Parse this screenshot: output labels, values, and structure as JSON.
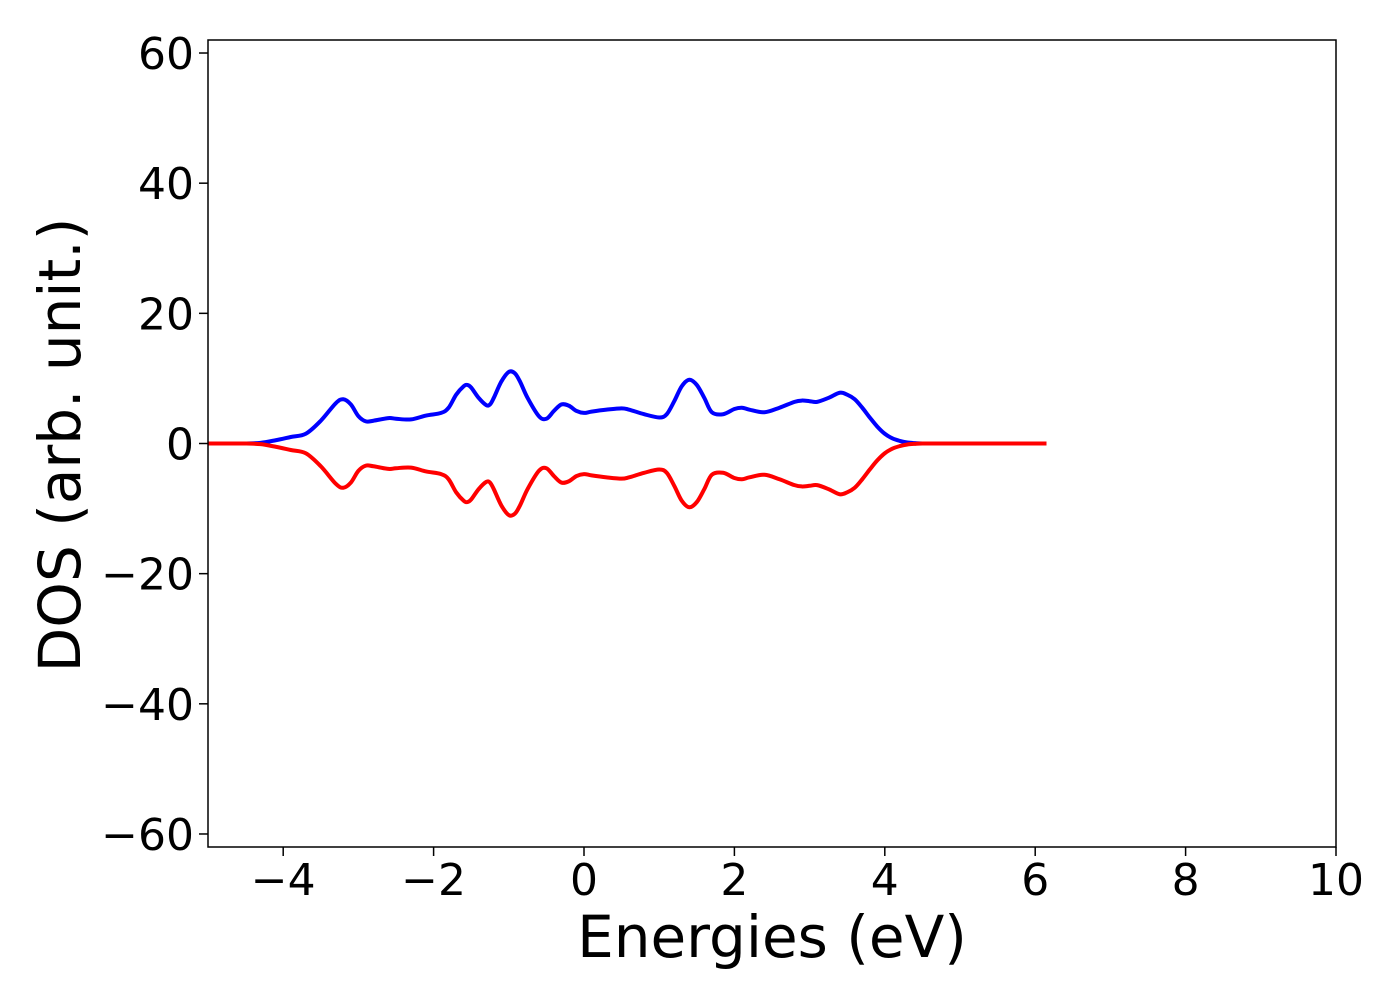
{
  "chart_data": {
    "type": "line",
    "title": "",
    "xlabel": "Energies (eV)",
    "ylabel": "DOS (arb. unit.)",
    "xlim": [
      -5,
      10
    ],
    "ylim": [
      -62,
      62
    ],
    "xticks": [
      -4,
      -2,
      0,
      2,
      4,
      6,
      8,
      10
    ],
    "yticks": [
      -60,
      -40,
      -20,
      0,
      20,
      40,
      60
    ],
    "xtick_labels": [
      "−4",
      "−2",
      "0",
      "2",
      "4",
      "6",
      "8",
      "10"
    ],
    "ytick_labels": [
      "−60",
      "−40",
      "−20",
      "0",
      "20",
      "40",
      "60"
    ],
    "grid": false,
    "legend": "none",
    "series": [
      {
        "color": "#0000ff",
        "x": [
          -5.0,
          -4.5,
          -4.3,
          -4.1,
          -3.9,
          -3.7,
          -3.5,
          -3.3,
          -3.2,
          -3.1,
          -3.0,
          -2.9,
          -2.8,
          -2.6,
          -2.5,
          -2.3,
          -2.1,
          -1.9,
          -1.8,
          -1.7,
          -1.6,
          -1.55,
          -1.5,
          -1.4,
          -1.3,
          -1.25,
          -1.2,
          -1.1,
          -1.0,
          -0.92,
          -0.85,
          -0.75,
          -0.6,
          -0.5,
          -0.4,
          -0.3,
          -0.2,
          -0.1,
          0.0,
          0.1,
          0.3,
          0.5,
          0.6,
          0.8,
          1.0,
          1.1,
          1.2,
          1.3,
          1.4,
          1.5,
          1.6,
          1.7,
          1.85,
          2.0,
          2.1,
          2.2,
          2.4,
          2.6,
          2.8,
          2.9,
          3.0,
          3.1,
          3.25,
          3.4,
          3.5,
          3.6,
          3.7,
          3.8,
          3.9,
          4.0,
          4.1,
          4.2,
          4.3,
          4.4,
          4.5,
          4.8,
          5.5,
          6.15
        ],
        "values": [
          0.0,
          0.0,
          0.1,
          0.5,
          1.0,
          1.5,
          3.5,
          6.2,
          6.8,
          6.0,
          4.2,
          3.4,
          3.5,
          3.9,
          3.8,
          3.7,
          4.3,
          4.7,
          5.5,
          7.5,
          8.8,
          9.0,
          8.6,
          7.0,
          5.9,
          6.0,
          7.0,
          9.5,
          11.0,
          10.8,
          9.5,
          7.0,
          4.2,
          3.8,
          5.0,
          6.0,
          5.8,
          5.0,
          4.7,
          4.9,
          5.2,
          5.4,
          5.2,
          4.5,
          4.0,
          4.5,
          6.5,
          8.8,
          9.8,
          9.0,
          7.0,
          4.8,
          4.5,
          5.3,
          5.5,
          5.2,
          4.8,
          5.5,
          6.4,
          6.6,
          6.5,
          6.4,
          7.0,
          7.8,
          7.5,
          6.8,
          5.5,
          4.0,
          2.6,
          1.5,
          0.8,
          0.4,
          0.15,
          0.05,
          0.0,
          0.0,
          0.0,
          0.0
        ]
      },
      {
        "color": "#ff0000",
        "x": [
          -5.0,
          -4.5,
          -4.3,
          -4.1,
          -3.9,
          -3.7,
          -3.5,
          -3.3,
          -3.2,
          -3.1,
          -3.0,
          -2.9,
          -2.8,
          -2.6,
          -2.5,
          -2.3,
          -2.1,
          -1.9,
          -1.8,
          -1.7,
          -1.6,
          -1.55,
          -1.5,
          -1.4,
          -1.3,
          -1.25,
          -1.2,
          -1.1,
          -1.0,
          -0.92,
          -0.85,
          -0.75,
          -0.6,
          -0.5,
          -0.4,
          -0.3,
          -0.2,
          -0.1,
          0.0,
          0.1,
          0.3,
          0.5,
          0.6,
          0.8,
          1.0,
          1.1,
          1.2,
          1.3,
          1.4,
          1.5,
          1.6,
          1.7,
          1.85,
          2.0,
          2.1,
          2.2,
          2.4,
          2.6,
          2.8,
          2.9,
          3.0,
          3.1,
          3.25,
          3.4,
          3.5,
          3.6,
          3.7,
          3.8,
          3.9,
          4.0,
          4.1,
          4.2,
          4.3,
          4.4,
          4.5,
          4.8,
          5.5,
          6.15
        ],
        "values": [
          0.0,
          0.0,
          -0.1,
          -0.5,
          -1.0,
          -1.5,
          -3.5,
          -6.2,
          -6.8,
          -6.0,
          -4.2,
          -3.4,
          -3.5,
          -3.9,
          -3.8,
          -3.7,
          -4.3,
          -4.7,
          -5.5,
          -7.5,
          -8.8,
          -9.0,
          -8.6,
          -7.0,
          -5.9,
          -6.0,
          -7.0,
          -9.5,
          -11.0,
          -10.8,
          -9.5,
          -7.0,
          -4.2,
          -3.8,
          -5.0,
          -6.0,
          -5.8,
          -5.0,
          -4.7,
          -4.9,
          -5.2,
          -5.4,
          -5.2,
          -4.5,
          -4.0,
          -4.5,
          -6.5,
          -8.8,
          -9.8,
          -9.0,
          -7.0,
          -4.8,
          -4.5,
          -5.3,
          -5.5,
          -5.2,
          -4.8,
          -5.5,
          -6.4,
          -6.6,
          -6.5,
          -6.4,
          -7.0,
          -7.8,
          -7.5,
          -6.8,
          -5.5,
          -4.0,
          -2.6,
          -1.5,
          -0.8,
          -0.4,
          -0.15,
          -0.05,
          0.0,
          0.0,
          0.0,
          0.0
        ]
      }
    ]
  }
}
